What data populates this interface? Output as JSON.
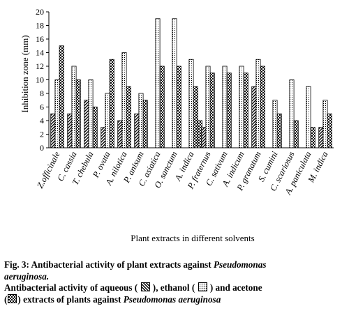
{
  "chart_data": {
    "type": "bar",
    "categories": [
      "Z.officinale",
      "C. cassia",
      "T. chebula",
      "P. ovata",
      "A. nilotica",
      "P. anisum",
      "C. asiatica",
      "O. sanctum",
      "A. indica",
      "P. fraternus",
      "C. sativum",
      "A. indicum",
      "P. granatum",
      "S. cumini",
      "C. scariosus",
      "A. paniculata",
      "M. indica"
    ],
    "series": [
      {
        "name": "aqueous",
        "values": [
          5,
          5,
          7,
          3,
          4,
          5,
          0,
          0,
          0,
          3,
          0,
          0,
          9,
          0,
          0,
          0,
          3
        ]
      },
      {
        "name": "ethanol",
        "values": [
          10,
          12,
          10,
          8,
          14,
          8,
          19,
          19,
          13,
          12,
          12,
          12,
          13,
          7,
          10,
          9,
          7
        ]
      },
      {
        "name": "acetone",
        "values": [
          15,
          10,
          6,
          13,
          9,
          7,
          12,
          12,
          9,
          11,
          11,
          11,
          12,
          5,
          4,
          3,
          5
        ]
      }
    ],
    "extra_bars": [
      {
        "category": "A. indica",
        "series": "acetone",
        "value": 4
      }
    ],
    "ylabel": "Inhibition zone (mm)",
    "xlabel": "Plant extracts in different solvents",
    "ylim": [
      0,
      20
    ],
    "yticks": [
      0,
      2,
      4,
      6,
      8,
      10,
      12,
      14,
      16,
      18,
      20
    ],
    "grid": false,
    "legend": "caption"
  },
  "caption": {
    "fig_title_prefix": "Fig. 3: Antibacterial activity of plant extracts against ",
    "fig_title_organism_a": "Pseudomonas",
    "fig_title_organism_b": "aeruginosa.",
    "legend_part1": "Antibacterial activity of aqueous (",
    "legend_part2": "), ethanol (",
    "legend_part3": ") and acetone",
    "legend_part4": "(",
    "legend_part5": ") extracts of plants against ",
    "legend_organism": "Pseudomonas aeruginosa"
  }
}
